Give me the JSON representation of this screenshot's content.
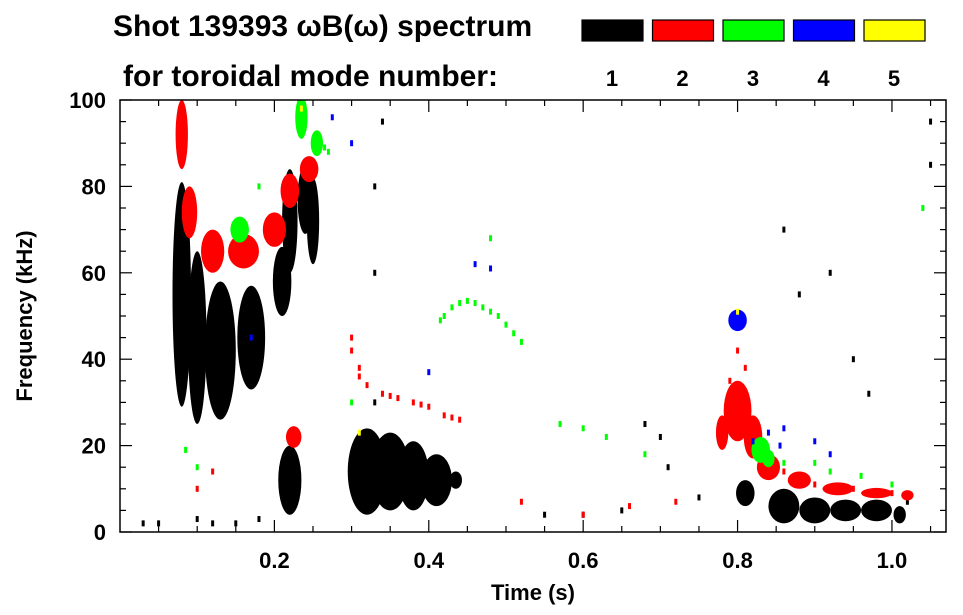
{
  "chart_data": {
    "type": "scatter",
    "title_line1": "Shot 139393 ωB(ω) spectrum",
    "title_line2": "for toroidal mode number:",
    "xlabel": "Time (s)",
    "ylabel": "Frequency (kHz)",
    "xlim": [
      0.0,
      1.07
    ],
    "ylim": [
      0,
      100
    ],
    "xticks": [
      0.2,
      0.4,
      0.6,
      0.8,
      1.0
    ],
    "xtick_labels": [
      "0.2",
      "0.4",
      "0.6",
      "0.8",
      "1.0"
    ],
    "yticks": [
      0,
      20,
      40,
      60,
      80,
      100
    ],
    "ytick_labels": [
      "0",
      "20",
      "40",
      "60",
      "80",
      "100"
    ],
    "grid": false,
    "legend_position": "top-right",
    "series": [
      {
        "name": "1",
        "color": "#000000",
        "blobs": [
          [
            0.08,
            55,
            0.012,
            26
          ],
          [
            0.1,
            45,
            0.012,
            20
          ],
          [
            0.13,
            42,
            0.02,
            16
          ],
          [
            0.17,
            45,
            0.018,
            12
          ],
          [
            0.22,
            72,
            0.01,
            12
          ],
          [
            0.24,
            77,
            0.01,
            8
          ],
          [
            0.25,
            72,
            0.008,
            10
          ],
          [
            0.21,
            58,
            0.012,
            8
          ],
          [
            0.22,
            12,
            0.015,
            8
          ],
          [
            0.32,
            14,
            0.025,
            10
          ],
          [
            0.35,
            14,
            0.025,
            9
          ],
          [
            0.38,
            13,
            0.02,
            8
          ],
          [
            0.41,
            12,
            0.02,
            6
          ],
          [
            0.435,
            12,
            0.008,
            2
          ],
          [
            0.81,
            9,
            0.012,
            3
          ],
          [
            0.86,
            6,
            0.02,
            4
          ],
          [
            0.9,
            5,
            0.02,
            3
          ],
          [
            0.94,
            5,
            0.02,
            2.5
          ],
          [
            0.98,
            5,
            0.02,
            2.5
          ],
          [
            1.01,
            4,
            0.008,
            2
          ]
        ],
        "points": [
          [
            0.1,
            3
          ],
          [
            0.12,
            2
          ],
          [
            0.15,
            2
          ],
          [
            0.18,
            3
          ],
          [
            0.05,
            2
          ],
          [
            0.03,
            2
          ],
          [
            0.33,
            60
          ],
          [
            0.33,
            80
          ],
          [
            0.34,
            95
          ],
          [
            0.33,
            30
          ],
          [
            0.7,
            22
          ],
          [
            0.71,
            15
          ],
          [
            0.68,
            25
          ],
          [
            0.86,
            70
          ],
          [
            0.88,
            55
          ],
          [
            0.92,
            60
          ],
          [
            0.95,
            40
          ],
          [
            0.97,
            32
          ],
          [
            1.05,
            95
          ],
          [
            1.05,
            85
          ],
          [
            1.02,
            7
          ],
          [
            0.55,
            4
          ],
          [
            0.6,
            4
          ],
          [
            0.65,
            5
          ],
          [
            0.75,
            8
          ]
        ]
      },
      {
        "name": "2",
        "color": "#ff0000",
        "blobs": [
          [
            0.08,
            92,
            0.008,
            8
          ],
          [
            0.09,
            74,
            0.01,
            6
          ],
          [
            0.12,
            65,
            0.015,
            5
          ],
          [
            0.16,
            65,
            0.02,
            4
          ],
          [
            0.2,
            70,
            0.015,
            4
          ],
          [
            0.22,
            79,
            0.012,
            4
          ],
          [
            0.245,
            84,
            0.012,
            3
          ],
          [
            0.225,
            22,
            0.01,
            2.5
          ],
          [
            0.8,
            28,
            0.018,
            7
          ],
          [
            0.82,
            22,
            0.012,
            5
          ],
          [
            0.78,
            23,
            0.008,
            4
          ],
          [
            0.84,
            15,
            0.015,
            3
          ],
          [
            0.88,
            12,
            0.015,
            2
          ],
          [
            0.93,
            10,
            0.02,
            1.5
          ],
          [
            0.98,
            9,
            0.02,
            1.2
          ],
          [
            1.02,
            8.5,
            0.008,
            1.2
          ]
        ],
        "points": [
          [
            0.3,
            45
          ],
          [
            0.31,
            38
          ],
          [
            0.32,
            34
          ],
          [
            0.34,
            32
          ],
          [
            0.36,
            31
          ],
          [
            0.38,
            30
          ],
          [
            0.4,
            29
          ],
          [
            0.42,
            27
          ],
          [
            0.44,
            26
          ],
          [
            0.3,
            42
          ],
          [
            0.31,
            36
          ],
          [
            0.35,
            31.5
          ],
          [
            0.39,
            29.5
          ],
          [
            0.43,
            26.5
          ],
          [
            0.81,
            38
          ],
          [
            0.8,
            42
          ],
          [
            0.79,
            35
          ],
          [
            0.83,
            20
          ],
          [
            0.86,
            14
          ],
          [
            0.9,
            11
          ],
          [
            0.95,
            10
          ],
          [
            1.0,
            9
          ],
          [
            0.6,
            4
          ],
          [
            0.66,
            6
          ],
          [
            0.72,
            7
          ],
          [
            0.52,
            7
          ],
          [
            0.1,
            10
          ],
          [
            0.12,
            14
          ]
        ]
      },
      {
        "name": "3",
        "color": "#00ff00",
        "blobs": [
          [
            0.235,
            96,
            0.008,
            5
          ],
          [
            0.255,
            90,
            0.008,
            3
          ],
          [
            0.155,
            70,
            0.012,
            3
          ],
          [
            0.83,
            19,
            0.012,
            3
          ],
          [
            0.84,
            17,
            0.008,
            2
          ]
        ],
        "points": [
          [
            0.42,
            50
          ],
          [
            0.43,
            52
          ],
          [
            0.44,
            53
          ],
          [
            0.45,
            53.5
          ],
          [
            0.46,
            53
          ],
          [
            0.47,
            52
          ],
          [
            0.48,
            51
          ],
          [
            0.49,
            50
          ],
          [
            0.5,
            48
          ],
          [
            0.51,
            46
          ],
          [
            0.52,
            44
          ],
          [
            0.415,
            49
          ],
          [
            0.265,
            89
          ],
          [
            0.27,
            88
          ],
          [
            0.1,
            15
          ],
          [
            0.085,
            19
          ],
          [
            0.3,
            30
          ],
          [
            0.57,
            25
          ],
          [
            0.6,
            24
          ],
          [
            0.63,
            22
          ],
          [
            0.68,
            18
          ],
          [
            0.86,
            16
          ],
          [
            0.9,
            16
          ],
          [
            0.92,
            14
          ],
          [
            0.96,
            13
          ],
          [
            1.0,
            11
          ],
          [
            1.04,
            75
          ],
          [
            0.48,
            68
          ],
          [
            0.18,
            80
          ]
        ]
      },
      {
        "name": "4",
        "color": "#0000ff",
        "blobs": [
          [
            0.8,
            49,
            0.012,
            2.5
          ]
        ],
        "points": [
          [
            0.275,
            96
          ],
          [
            0.3,
            90
          ],
          [
            0.46,
            62
          ],
          [
            0.48,
            61
          ],
          [
            0.84,
            23
          ],
          [
            0.82,
            21
          ],
          [
            0.855,
            20
          ],
          [
            0.9,
            21
          ],
          [
            0.17,
            45
          ],
          [
            0.4,
            37
          ],
          [
            0.92,
            18
          ],
          [
            0.86,
            24
          ]
        ]
      },
      {
        "name": "5",
        "color": "#ffff00",
        "blobs": [],
        "points": [
          [
            0.31,
            23
          ],
          [
            0.8,
            51
          ],
          [
            0.235,
            98
          ]
        ]
      }
    ]
  }
}
